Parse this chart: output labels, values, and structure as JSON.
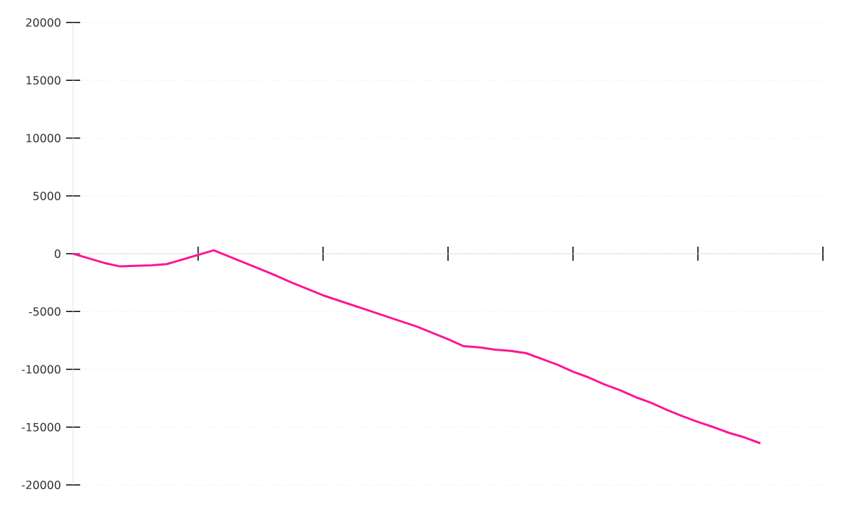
{
  "chart_data": {
    "type": "line",
    "categories": [
      null,
      null,
      null,
      null,
      null,
      null,
      null,
      null,
      null,
      null,
      null,
      null,
      null,
      null,
      null,
      null,
      null,
      null,
      null,
      null,
      null,
      null,
      null,
      null,
      null,
      null,
      null,
      null,
      null,
      null,
      null,
      null,
      null,
      null,
      null,
      null,
      null,
      null,
      null,
      null,
      null,
      null,
      null,
      null,
      null
    ],
    "values": [
      0,
      -400,
      -800,
      -1100,
      -1050,
      -1000,
      -900,
      -500,
      -100,
      300,
      -250,
      -800,
      -1350,
      -1900,
      -2500,
      -3050,
      -3600,
      -4050,
      -4500,
      -4950,
      -5400,
      -5850,
      -6300,
      -6850,
      -7400,
      -8000,
      -8100,
      -8300,
      -8400,
      -8600,
      -9100,
      -9600,
      -10200,
      -10700,
      -11300,
      -11800,
      -12400,
      -12900,
      -13500,
      -14050,
      -14550,
      -15000,
      -15500,
      -15900,
      -16400
    ],
    "color": "#ff1493",
    "ylim": [
      -20000,
      20000
    ],
    "yticks": [
      -20000,
      -15000,
      -10000,
      -5000,
      0,
      5000,
      10000,
      15000,
      20000
    ],
    "grid": "y",
    "tick_labels": "y"
  }
}
